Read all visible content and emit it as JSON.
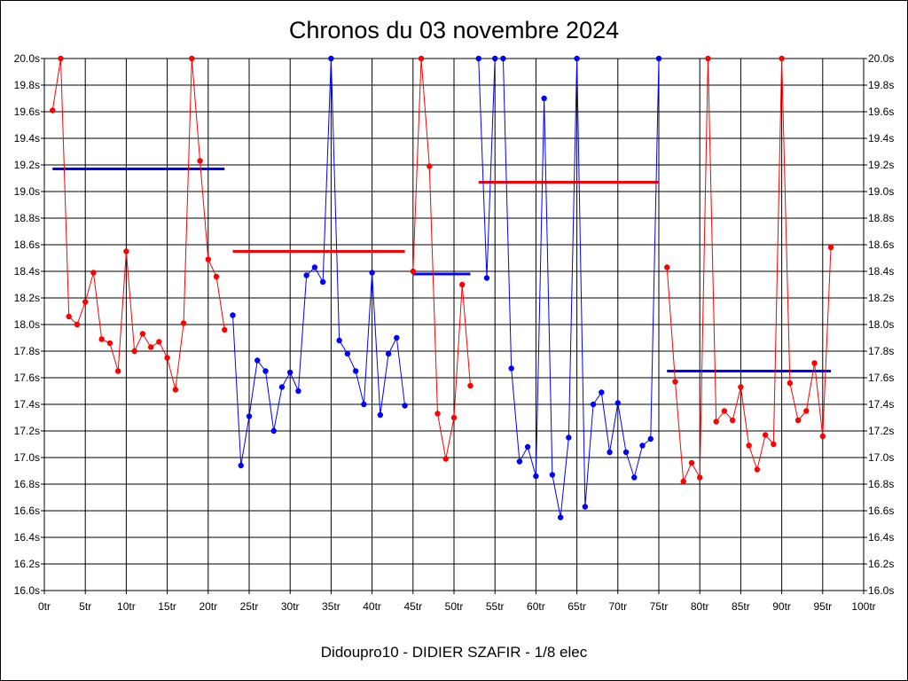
{
  "chart_data": {
    "type": "line",
    "title": "Chronos du 03 novembre 2024",
    "footer": "Didoupro10 - DIDIER SZAFIR - 1/8 elec",
    "xlabel": "",
    "ylabel": "",
    "xlim": [
      0,
      100
    ],
    "ylim": [
      16.0,
      20.0
    ],
    "y_ticks": [
      "16.0s",
      "16.2s",
      "16.4s",
      "16.6s",
      "16.8s",
      "17.0s",
      "17.2s",
      "17.4s",
      "17.6s",
      "17.8s",
      "18.0s",
      "18.2s",
      "18.4s",
      "18.6s",
      "18.8s",
      "19.0s",
      "19.2s",
      "19.4s",
      "19.6s",
      "19.8s",
      "20.0s"
    ],
    "x_ticks": [
      "0tr",
      "5tr",
      "10tr",
      "15tr",
      "20tr",
      "25tr",
      "30tr",
      "35tr",
      "40tr",
      "45tr",
      "50tr",
      "55tr",
      "60tr",
      "65tr",
      "70tr",
      "75tr",
      "80tr",
      "85tr",
      "90tr",
      "95tr",
      "100tr"
    ],
    "grid": true,
    "colors": {
      "red": "#ff0000",
      "blue": "#0000ff",
      "grid": "#000000"
    },
    "series": [
      {
        "color": "red",
        "x": [
          1,
          2,
          3,
          4,
          5,
          6,
          7,
          8,
          9,
          10,
          11,
          12,
          13,
          14,
          15,
          16,
          17,
          18,
          19,
          20,
          21,
          22
        ],
        "y": [
          19.61,
          20.0,
          18.06,
          18.0,
          18.17,
          18.39,
          17.89,
          17.86,
          17.65,
          18.55,
          17.8,
          17.93,
          17.83,
          17.87,
          17.75,
          17.51,
          18.01,
          20.0,
          19.23,
          18.49,
          18.36,
          17.96
        ]
      },
      {
        "color": "blue",
        "x": [
          23,
          24,
          25,
          26,
          27,
          28,
          29,
          30,
          31,
          32,
          33,
          34,
          35,
          36,
          37,
          38,
          39,
          40,
          41,
          42,
          43,
          44
        ],
        "y": [
          18.07,
          16.94,
          17.31,
          17.73,
          17.65,
          17.2,
          17.53,
          17.64,
          17.5,
          18.37,
          18.43,
          18.32,
          20.0,
          17.88,
          17.78,
          17.65,
          17.4,
          18.39,
          17.32,
          17.78,
          17.9,
          17.39
        ]
      },
      {
        "color": "red",
        "x": [
          45,
          46,
          47,
          48,
          49,
          50,
          51,
          52
        ],
        "y": [
          18.4,
          20.0,
          19.19,
          17.33,
          16.99,
          17.3,
          18.3,
          17.54
        ]
      },
      {
        "color": "blue",
        "x": [
          53,
          54,
          55,
          56,
          57,
          58,
          59,
          60,
          61,
          62,
          63,
          64,
          65,
          66,
          67,
          68,
          69,
          70,
          71,
          72,
          73,
          74,
          75
        ],
        "y": [
          20.0,
          18.35,
          20.0,
          20.0,
          17.67,
          16.97,
          17.08,
          16.86,
          19.7,
          16.87,
          16.55,
          17.15,
          20.0,
          16.63,
          17.4,
          17.49,
          17.04,
          17.41,
          17.04,
          16.85,
          17.09,
          17.14,
          20.0
        ]
      },
      {
        "color": "red",
        "x": [
          76,
          77,
          78,
          79,
          80,
          81,
          82,
          83,
          84,
          85,
          86,
          87,
          88,
          89,
          90,
          91,
          92,
          93,
          94,
          95,
          96
        ],
        "y": [
          18.43,
          17.57,
          16.82,
          16.96,
          16.85,
          20.0,
          17.27,
          17.35,
          17.28,
          17.53,
          17.09,
          16.91,
          17.17,
          17.1,
          20.0,
          17.56,
          17.28,
          17.35,
          17.71,
          17.16,
          18.58
        ]
      }
    ],
    "averages": [
      {
        "color": "blue",
        "x": [
          1,
          22
        ],
        "y": 19.17
      },
      {
        "color": "red",
        "x": [
          23,
          44
        ],
        "y": 18.55
      },
      {
        "color": "blue",
        "x": [
          45,
          52
        ],
        "y": 18.38
      },
      {
        "color": "red",
        "x": [
          53,
          75
        ],
        "y": 19.07
      },
      {
        "color": "blue",
        "x": [
          76,
          96
        ],
        "y": 17.65
      }
    ]
  }
}
